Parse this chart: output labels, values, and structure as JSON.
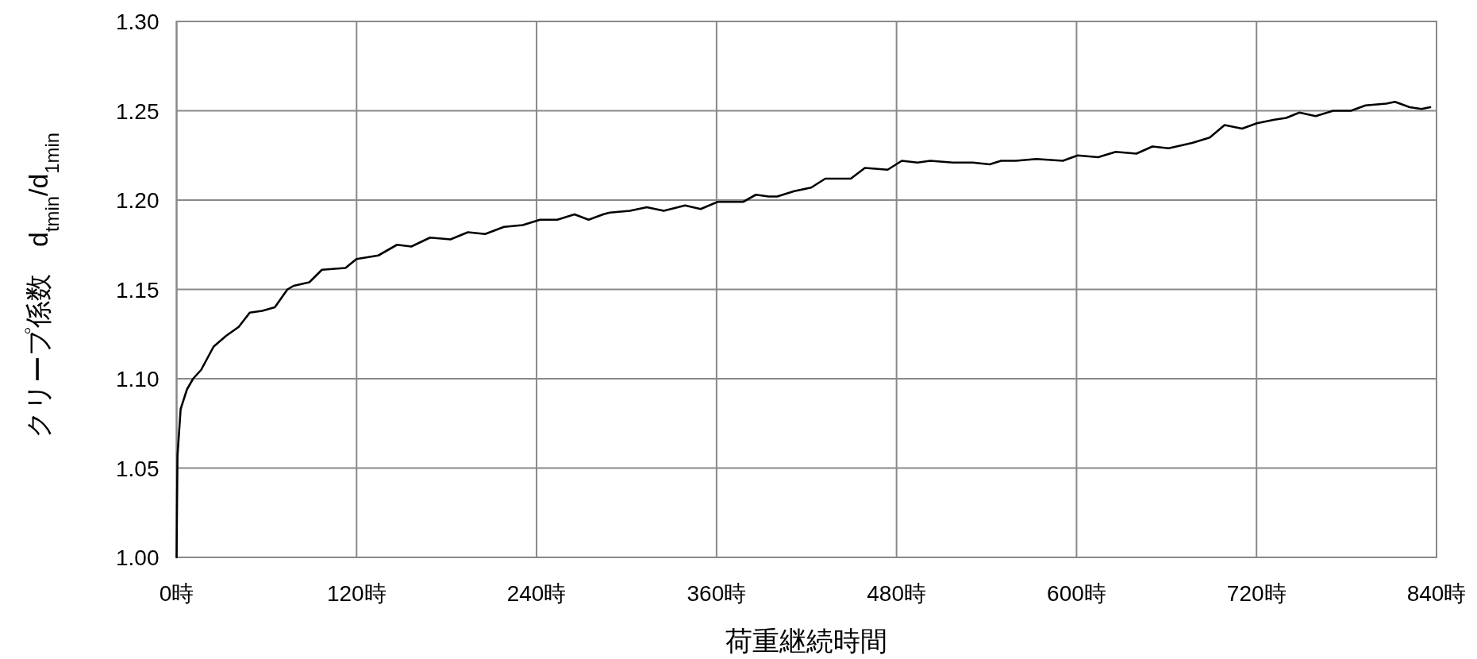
{
  "chart_data": {
    "type": "line",
    "xlabel": "荷重継続時間",
    "ylabel": "クリープ係数　d$_{tmin}$/d$_{1min}$",
    "xlim": [
      0,
      840
    ],
    "ylim": [
      1.0,
      1.3
    ],
    "xticks": [
      {
        "value": 0,
        "label": "0時"
      },
      {
        "value": 120,
        "label": "120時"
      },
      {
        "value": 240,
        "label": "240時"
      },
      {
        "value": 360,
        "label": "360時"
      },
      {
        "value": 480,
        "label": "480時"
      },
      {
        "value": 600,
        "label": "600時"
      },
      {
        "value": 720,
        "label": "720時"
      },
      {
        "value": 840,
        "label": "840時"
      }
    ],
    "yticks": [
      {
        "value": 1.0,
        "label": "1.00"
      },
      {
        "value": 1.05,
        "label": "1.05"
      },
      {
        "value": 1.1,
        "label": "1.10"
      },
      {
        "value": 1.15,
        "label": "1.15"
      },
      {
        "value": 1.2,
        "label": "1.20"
      },
      {
        "value": 1.25,
        "label": "1.25"
      },
      {
        "value": 1.3,
        "label": "1.30"
      }
    ],
    "grid": true,
    "marker": "none",
    "line_style": "solid",
    "x": [
      0,
      0.3,
      0.6,
      2.7,
      6.9,
      11,
      16.4,
      24.7,
      33,
      41.4,
      48.8,
      57.1,
      65.5,
      73.9,
      78,
      88.5,
      96.9,
      112.6,
      119.9,
      134.5,
      147,
      156.5,
      169,
      182.6,
      194.2,
      205.7,
      218.3,
      230.8,
      242.3,
      253.8,
      265.3,
      274.7,
      284.4,
      288.9,
      302.2,
      313.5,
      324.8,
      339,
      349.4,
      360.7,
      377.7,
      386.2,
      394.8,
      400.4,
      411.8,
      423.1,
      432.5,
      449.5,
      458.9,
      474.1,
      483.5,
      494,
      502.5,
      517.6,
      530.8,
      542.1,
      549.7,
      559.5,
      573.2,
      590.9,
      600.7,
      614.4,
      626.1,
      639.9,
      650.6,
      661.4,
      677.1,
      688.8,
      698.7,
      710.4,
      720.2,
      731.9,
      739.8,
      748.6,
      759.4,
      771.1,
      782.9,
      792.7,
      806.5,
      812.3,
      822.1,
      830,
      835.8
    ],
    "series": [
      {
        "color": "#000000",
        "values": [
          1.0,
          1.031,
          1.057,
          1.083,
          1.094,
          1.1,
          1.105,
          1.118,
          1.124,
          1.129,
          1.137,
          1.138,
          1.14,
          1.15,
          1.152,
          1.154,
          1.161,
          1.162,
          1.167,
          1.169,
          1.175,
          1.174,
          1.179,
          1.178,
          1.182,
          1.181,
          1.185,
          1.186,
          1.189,
          1.189,
          1.192,
          1.189,
          1.192,
          1.193,
          1.194,
          1.196,
          1.194,
          1.197,
          1.195,
          1.199,
          1.199,
          1.203,
          1.202,
          1.202,
          1.205,
          1.207,
          1.212,
          1.212,
          1.218,
          1.217,
          1.222,
          1.221,
          1.222,
          1.221,
          1.221,
          1.22,
          1.222,
          1.222,
          1.223,
          1.222,
          1.225,
          1.224,
          1.227,
          1.226,
          1.23,
          1.229,
          1.232,
          1.235,
          1.242,
          1.24,
          1.243,
          1.245,
          1.246,
          1.249,
          1.247,
          1.25,
          1.25,
          1.253,
          1.254,
          1.255,
          1.252,
          1.251,
          1.252
        ]
      }
    ]
  }
}
